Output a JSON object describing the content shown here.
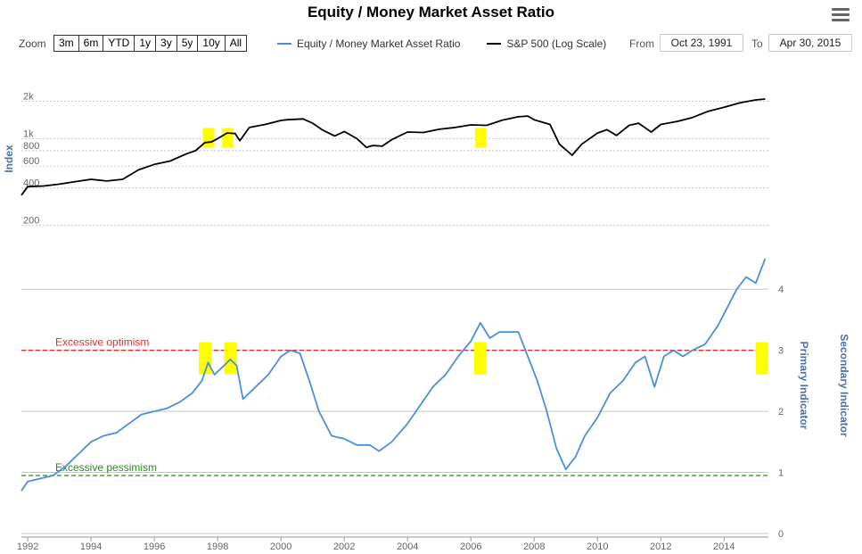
{
  "title": "Equity / Money Market Asset Ratio",
  "toolbar": {
    "zoom_label": "Zoom",
    "zoom_buttons": [
      "3m",
      "6m",
      "YTD",
      "1y",
      "3y",
      "5y",
      "10y",
      "All"
    ],
    "from_label": "From",
    "from_value": "Oct 23, 1991",
    "to_label": "To",
    "to_value": "Apr 30, 2015"
  },
  "legend": [
    {
      "name": "Equity / Money Market Asset Ratio",
      "color": "#4a90d9"
    },
    {
      "name": "S&P 500 (Log Scale)",
      "color": "#000000"
    }
  ],
  "colors": {
    "ratio": "#4a90d9",
    "sp500": "#000000",
    "highlight": "#ffff00",
    "highlight_line": "#3f8f29",
    "optimism": "#e03131",
    "pessimism": "#2e8b1f",
    "grid": "#c8c8c8"
  },
  "chart_data": {
    "type": "line",
    "x_ticks": [
      "1992",
      "1994",
      "1996",
      "1998",
      "2000",
      "2002",
      "2004",
      "2006",
      "2008",
      "2010",
      "2012",
      "2014"
    ],
    "xlim": [
      1991.8,
      2015.4
    ],
    "upper_panel": {
      "ylabel": "Index",
      "scale": "log",
      "ticks": [
        "200",
        "400",
        "600",
        "800",
        "1k",
        "2k"
      ],
      "series": {
        "name": "S&P 500 (Log Scale)",
        "x": [
          1991.8,
          1992.0,
          1992.5,
          1993.0,
          1993.5,
          1994.0,
          1994.5,
          1995.0,
          1995.5,
          1996.0,
          1996.5,
          1997.0,
          1997.3,
          1997.6,
          1997.8,
          1998.0,
          1998.3,
          1998.55,
          1998.7,
          1999.0,
          1999.5,
          2000.0,
          2000.2,
          2000.7,
          2001.0,
          2001.3,
          2001.7,
          2002.0,
          2002.4,
          2002.7,
          2002.9,
          2003.2,
          2003.5,
          2004.0,
          2004.5,
          2005.0,
          2005.5,
          2006.0,
          2006.5,
          2007.0,
          2007.5,
          2007.8,
          2008.0,
          2008.5,
          2008.8,
          2009.2,
          2009.5,
          2010.0,
          2010.3,
          2010.6,
          2011.0,
          2011.3,
          2011.7,
          2012.0,
          2012.5,
          2013.0,
          2013.5,
          2014.0,
          2014.5,
          2015.0,
          2015.3
        ],
        "y": [
          350,
          410,
          415,
          430,
          450,
          470,
          455,
          470,
          560,
          620,
          660,
          750,
          800,
          930,
          940,
          1000,
          1110,
          1100,
          960,
          1230,
          1300,
          1400,
          1420,
          1440,
          1330,
          1180,
          1050,
          1140,
          1000,
          850,
          880,
          870,
          980,
          1130,
          1120,
          1190,
          1230,
          1290,
          1280,
          1410,
          1500,
          1520,
          1420,
          1300,
          900,
          735,
          900,
          1110,
          1180,
          1060,
          1280,
          1330,
          1130,
          1300,
          1370,
          1480,
          1660,
          1790,
          1940,
          2050,
          2085
        ]
      },
      "highlights": [
        1997.7,
        1998.3,
        2006.3
      ]
    },
    "lower_panel": {
      "ylabel": "Primary Indicator",
      "y2label": "Secondary Indicator",
      "ticks": [
        "0",
        "1",
        "2",
        "3",
        "4"
      ],
      "ylim": [
        0,
        4.5
      ],
      "series": {
        "name": "Equity / Money Market Asset Ratio",
        "x": [
          1991.8,
          1992.0,
          1992.4,
          1992.8,
          1993.2,
          1993.6,
          1994.0,
          1994.4,
          1994.8,
          1995.2,
          1995.6,
          1996.0,
          1996.4,
          1996.8,
          1997.2,
          1997.5,
          1997.7,
          1997.9,
          1998.2,
          1998.4,
          1998.6,
          1998.8,
          1999.2,
          1999.6,
          2000.0,
          2000.3,
          2000.6,
          2000.9,
          2001.2,
          2001.6,
          2002.0,
          2002.4,
          2002.8,
          2003.1,
          2003.5,
          2004.0,
          2004.4,
          2004.8,
          2005.2,
          2005.6,
          2006.0,
          2006.3,
          2006.6,
          2006.9,
          2007.2,
          2007.5,
          2007.8,
          2008.1,
          2008.4,
          2008.7,
          2009.0,
          2009.3,
          2009.6,
          2010.0,
          2010.4,
          2010.8,
          2011.2,
          2011.5,
          2011.8,
          2012.1,
          2012.4,
          2012.7,
          2013.0,
          2013.4,
          2013.8,
          2014.1,
          2014.4,
          2014.7,
          2015.0,
          2015.3
        ],
        "y": [
          0.7,
          0.85,
          0.9,
          0.95,
          1.1,
          1.3,
          1.5,
          1.6,
          1.65,
          1.8,
          1.95,
          2.0,
          2.05,
          2.15,
          2.3,
          2.5,
          2.8,
          2.6,
          2.75,
          2.85,
          2.75,
          2.2,
          2.4,
          2.6,
          2.9,
          3.0,
          2.95,
          2.5,
          2.0,
          1.6,
          1.55,
          1.45,
          1.45,
          1.35,
          1.5,
          1.8,
          2.1,
          2.4,
          2.6,
          2.9,
          3.15,
          3.45,
          3.2,
          3.3,
          3.3,
          3.3,
          2.9,
          2.5,
          2.0,
          1.4,
          1.05,
          1.25,
          1.6,
          1.9,
          2.3,
          2.5,
          2.8,
          2.9,
          2.4,
          2.9,
          3.0,
          2.9,
          3.0,
          3.1,
          3.4,
          3.7,
          4.0,
          4.2,
          4.1,
          4.5
        ]
      },
      "thresholds": [
        {
          "label": "Excessive optimism",
          "value": 3.0
        },
        {
          "label": "Excessive pessimism",
          "value": 0.95
        }
      ],
      "highlights": [
        1997.6,
        1998.4,
        2006.3,
        2015.2
      ]
    }
  }
}
